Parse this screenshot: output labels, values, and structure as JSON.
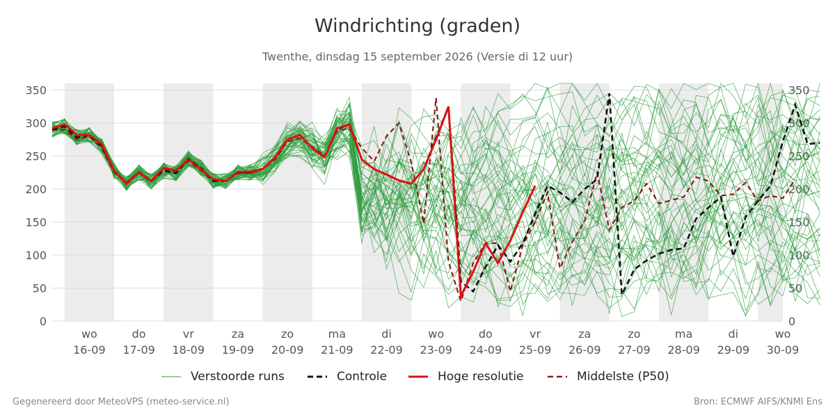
{
  "chart_data": {
    "type": "line",
    "title": "Windrichting (graden)",
    "subtitle": "Twenthe, dinsdag 15 september 2026 (Versie di 12 uur)",
    "ylim": [
      0,
      360
    ],
    "yticks": [
      0,
      50,
      100,
      150,
      200,
      250,
      300,
      350
    ],
    "day_labels": [
      {
        "day": "wo",
        "date": "16-09"
      },
      {
        "day": "do",
        "date": "17-09"
      },
      {
        "day": "vr",
        "date": "18-09"
      },
      {
        "day": "za",
        "date": "19-09"
      },
      {
        "day": "zo",
        "date": "20-09"
      },
      {
        "day": "ma",
        "date": "21-09"
      },
      {
        "day": "di",
        "date": "22-09"
      },
      {
        "day": "wo",
        "date": "23-09"
      },
      {
        "day": "do",
        "date": "24-09"
      },
      {
        "day": "vr",
        "date": "25-09"
      },
      {
        "day": "za",
        "date": "26-09"
      },
      {
        "day": "zo",
        "date": "27-09"
      },
      {
        "day": "ma",
        "date": "28-09"
      },
      {
        "day": "di",
        "date": "29-09"
      },
      {
        "day": "wo",
        "date": "30-09"
      }
    ],
    "shaded_days": [
      "16-09",
      "18-09",
      "20-09",
      "22-09",
      "24-09",
      "26-09",
      "28-09",
      "30-09"
    ],
    "x_start": "2026-09-15 18:00",
    "x_end": "2026-09-30 12:00",
    "x_step_hours": 6,
    "series": [
      {
        "name": "Controle",
        "style": "dashed",
        "color": "#111111",
        "values": [
          290,
          295,
          278,
          282,
          265,
          228,
          208,
          225,
          212,
          228,
          224,
          246,
          232,
          212,
          212,
          225,
          225,
          230,
          248,
          275,
          282,
          262,
          248,
          290,
          298,
          245,
          230,
          222,
          213,
          208,
          230,
          278,
          325,
          60,
          45,
          82,
          115,
          90,
          118,
          162,
          205,
          195,
          180,
          200,
          215,
          345,
          40,
          78,
          92,
          102,
          108,
          110,
          155,
          172,
          188,
          98,
          158,
          182,
          205,
          272,
          328,
          268,
          270
        ]
      },
      {
        "name": "Hoge resolutie",
        "style": "solid",
        "color": "#dd1111",
        "values": [
          292,
          298,
          282,
          282,
          268,
          228,
          208,
          225,
          212,
          232,
          228,
          245,
          230,
          215,
          212,
          226,
          226,
          230,
          248,
          275,
          282,
          262,
          248,
          292,
          298,
          245,
          230,
          222,
          213,
          208,
          230,
          275,
          325,
          38,
          75,
          118,
          88,
          122,
          165,
          205
        ]
      },
      {
        "name": "Middelste (P50)",
        "style": "dashed",
        "color": "#8b1a1a",
        "values": [
          290,
          290,
          275,
          280,
          262,
          225,
          210,
          226,
          213,
          230,
          226,
          242,
          228,
          213,
          212,
          224,
          224,
          230,
          245,
          272,
          277,
          264,
          250,
          288,
          292,
          262,
          242,
          280,
          300,
          240,
          148,
          338,
          90,
          30,
          88,
          118,
          118,
          45,
          115,
          150,
          195,
          80,
          120,
          152,
          225,
          138,
          172,
          182,
          208,
          178,
          183,
          188,
          218,
          212,
          190,
          192,
          210,
          182,
          190,
          186,
          215
        ]
      },
      {
        "name": "Verstoorde runs",
        "style": "thin",
        "color": "#2e9e3e",
        "count": 50
      }
    ]
  },
  "legend": {
    "perturbed": "Verstoorde runs",
    "control": "Controle",
    "high_res": "Hoge resolutie",
    "median": "Middelste (P50)"
  },
  "footer": {
    "left": "Gegenereerd door MeteoVPS (meteo-service.nl)",
    "right": "Bron: ECMWF AIFS/KNMI Ens"
  },
  "colors": {
    "ensemble": "#2e9e3e",
    "control": "#111111",
    "high_res": "#dd1111",
    "median": "#8b1a1a",
    "weekend_shade": "#ececec",
    "grid": "#dddddd"
  }
}
